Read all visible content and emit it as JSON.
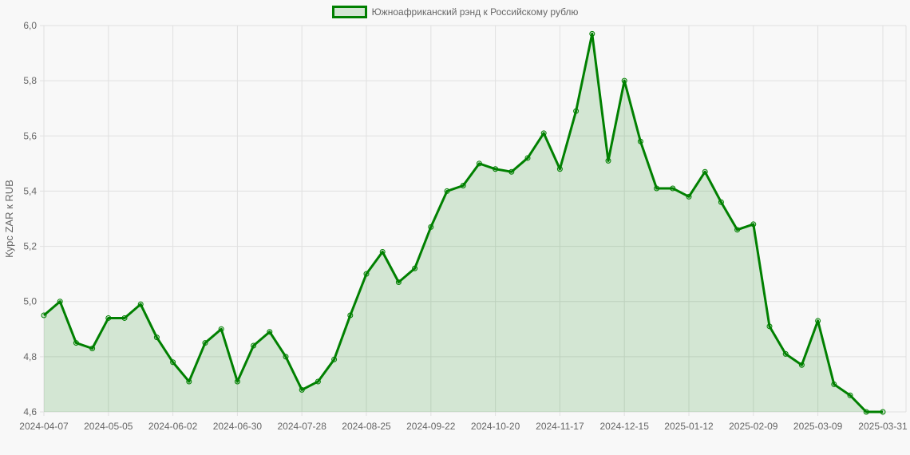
{
  "chart_data": {
    "type": "area",
    "title": "",
    "legend": [
      {
        "label": "Южноафриканский рэнд к Российскому рублю",
        "color": "#008000",
        "fill": "rgba(0,128,0,0.15)"
      }
    ],
    "legend_position": "top",
    "xlabel": "",
    "ylabel": "Курс ZAR к RUB",
    "ylim": [
      4.6,
      6.0
    ],
    "yticks": [
      "4,6",
      "4,8",
      "5,0",
      "5,2",
      "5,4",
      "5,6",
      "5,8",
      "6,0"
    ],
    "xticks": [
      "2024-04-07",
      "2024-05-05",
      "2024-06-02",
      "2024-06-30",
      "2024-07-28",
      "2024-08-25",
      "2024-09-22",
      "2024-10-20",
      "2024-11-17",
      "2024-12-15",
      "2025-01-12",
      "2025-02-09",
      "2025-03-09",
      "2025-03-31"
    ],
    "grid": true,
    "series": [
      {
        "name": "Южноафриканский рэнд к Российскому рублю",
        "values": [
          4.95,
          5.0,
          4.85,
          4.83,
          4.94,
          4.94,
          4.99,
          4.87,
          4.78,
          4.71,
          4.85,
          4.9,
          4.71,
          4.84,
          4.89,
          4.8,
          4.68,
          4.71,
          4.79,
          4.95,
          5.1,
          5.18,
          5.07,
          5.12,
          5.27,
          5.4,
          5.42,
          5.5,
          5.48,
          5.47,
          5.52,
          5.61,
          5.48,
          5.69,
          5.97,
          5.51,
          5.8,
          5.58,
          5.41,
          5.41,
          5.38,
          5.47,
          5.36,
          5.26,
          5.28,
          4.91,
          4.81,
          4.77,
          4.93,
          4.7,
          4.66,
          4.6,
          4.6
        ]
      }
    ],
    "last_point_date": "2025-03-31"
  }
}
